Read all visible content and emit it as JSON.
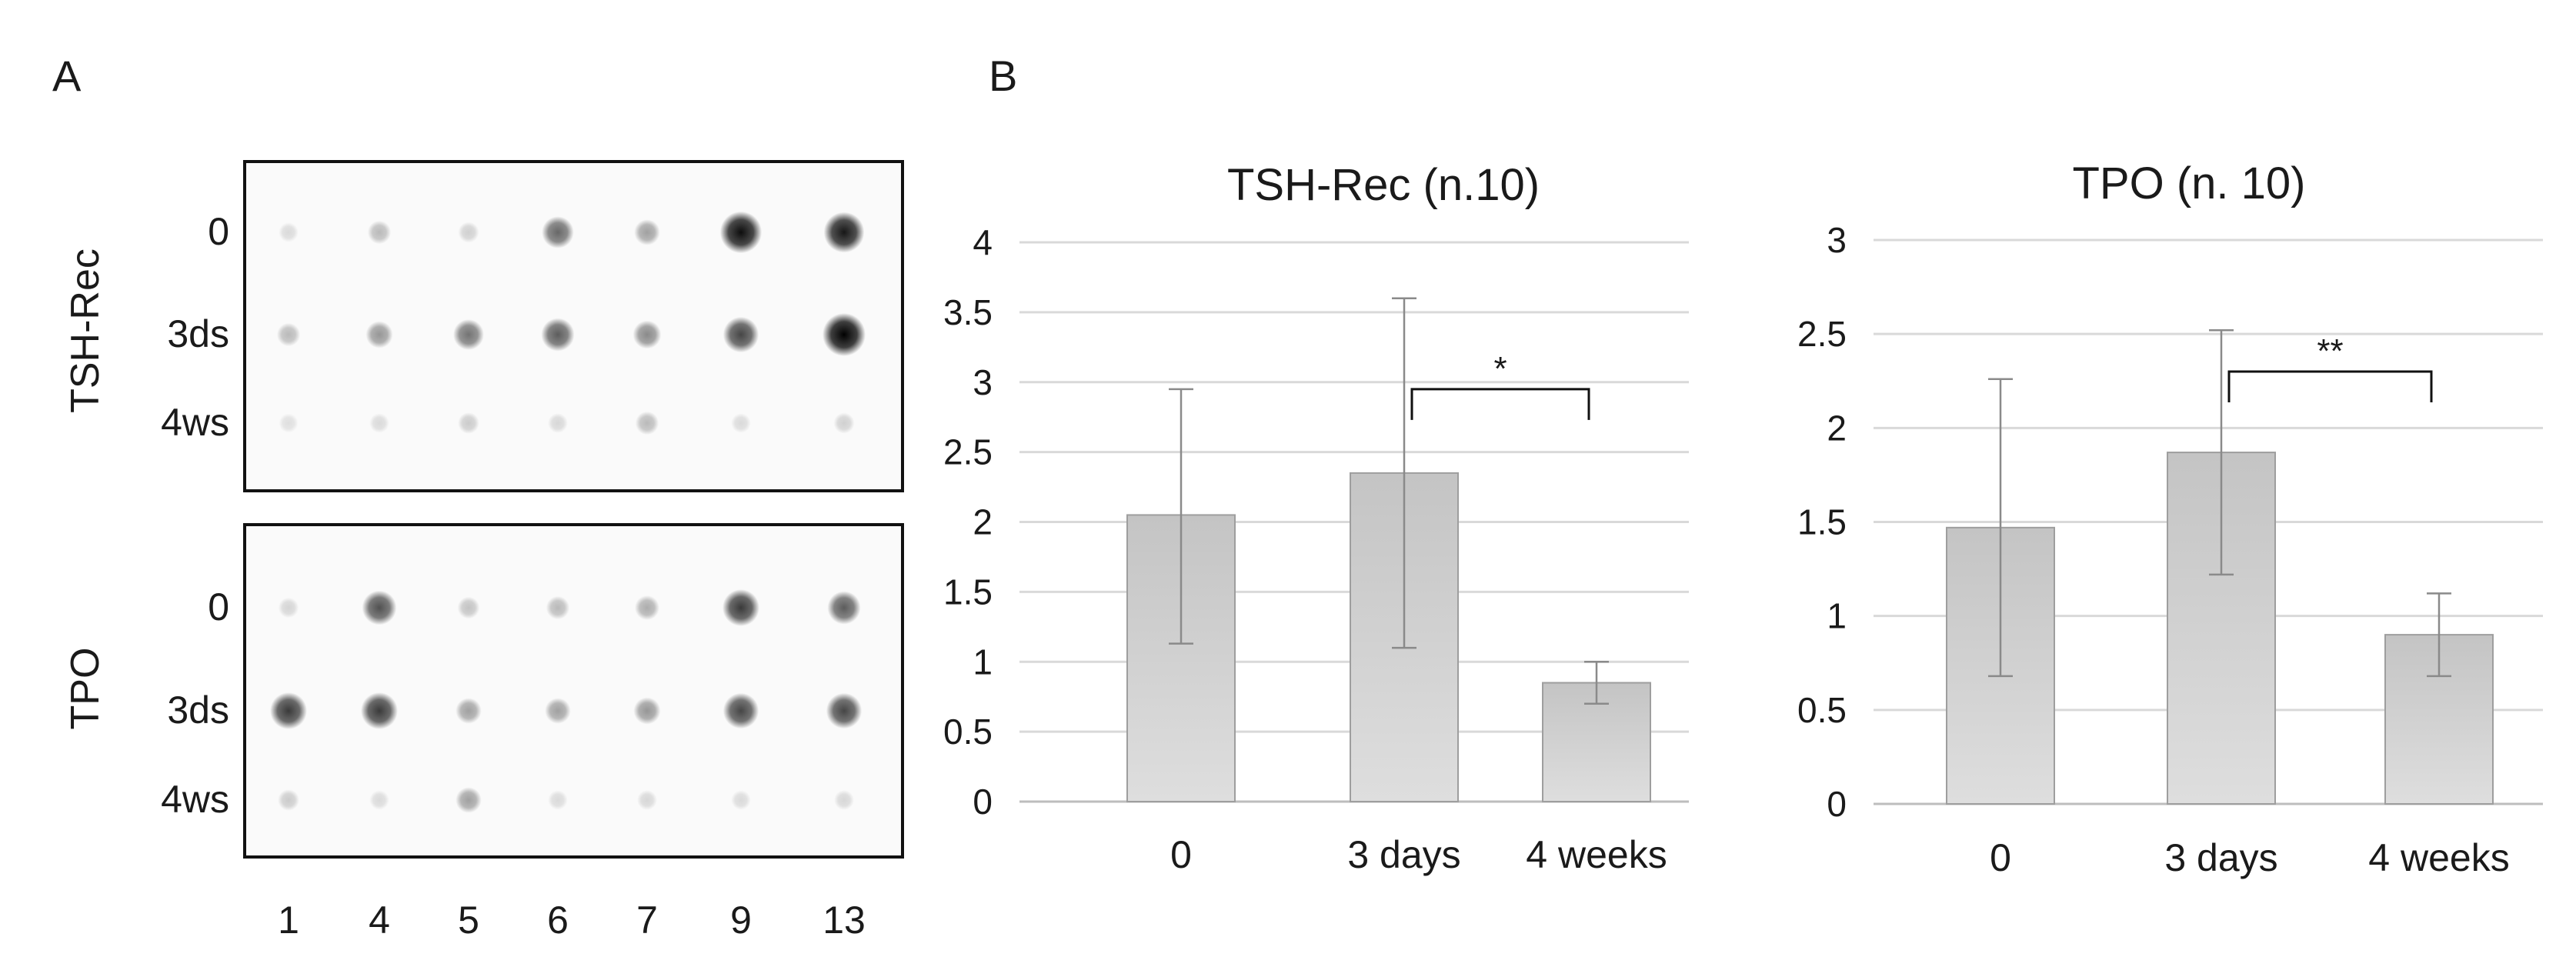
{
  "panels": {
    "a": {
      "letter": "A"
    },
    "b": {
      "letter": "B"
    }
  },
  "blot": {
    "lane_labels": [
      "1",
      "4",
      "5",
      "6",
      "7",
      "9",
      "13"
    ],
    "groups": [
      {
        "name": "TSH-Rec",
        "rows": [
          "0",
          "3ds",
          "4ws"
        ],
        "spot_intensity": [
          [
            0.05,
            0.2,
            0.1,
            0.55,
            0.3,
            0.95,
            0.9
          ],
          [
            0.2,
            0.35,
            0.5,
            0.6,
            0.4,
            0.7,
            1.0
          ],
          [
            0.03,
            0.05,
            0.12,
            0.06,
            0.2,
            0.05,
            0.1
          ]
        ]
      },
      {
        "name": "TPO",
        "rows": [
          "0",
          "3ds",
          "4ws"
        ],
        "spot_intensity": [
          [
            0.08,
            0.65,
            0.15,
            0.2,
            0.25,
            0.75,
            0.6
          ],
          [
            0.75,
            0.75,
            0.3,
            0.3,
            0.35,
            0.7,
            0.7
          ],
          [
            0.12,
            0.05,
            0.3,
            0.05,
            0.06,
            0.05,
            0.06
          ]
        ]
      }
    ]
  },
  "chart_data": [
    {
      "type": "bar",
      "title": "TSH-Rec (n.10)",
      "categories": [
        "0",
        "3 days",
        "4 weeks"
      ],
      "values": [
        2.05,
        2.35,
        0.85
      ],
      "error_low": [
        1.13,
        1.1,
        0.7
      ],
      "error_high": [
        2.95,
        3.6,
        1.0
      ],
      "ylim": [
        0,
        4
      ],
      "yticks": [
        0,
        0.5,
        1,
        1.5,
        2,
        2.5,
        3,
        3.5,
        4
      ],
      "ytick_labels": [
        "0",
        "0.5",
        "1",
        "1.5",
        "2",
        "2.5",
        "3",
        "3.5",
        "4"
      ],
      "significance": {
        "between": [
          "3 days",
          "4 weeks"
        ],
        "label": "*",
        "level": 2.95
      },
      "grid": true
    },
    {
      "type": "bar",
      "title": "TPO (n. 10)",
      "categories": [
        "0",
        "3 days",
        "4 weeks"
      ],
      "values": [
        1.47,
        1.87,
        0.9
      ],
      "error_low": [
        0.68,
        1.22,
        0.68
      ],
      "error_high": [
        2.26,
        2.52,
        1.12
      ],
      "ylim": [
        0,
        3
      ],
      "yticks": [
        0,
        0.5,
        1,
        1.5,
        2,
        2.5,
        3
      ],
      "ytick_labels": [
        "0",
        "0.5",
        "1",
        "1.5",
        "2",
        "2.5",
        "3"
      ],
      "significance": {
        "between": [
          "3 days",
          "4 weeks"
        ],
        "label": "**",
        "level": 2.3
      },
      "grid": true
    }
  ]
}
